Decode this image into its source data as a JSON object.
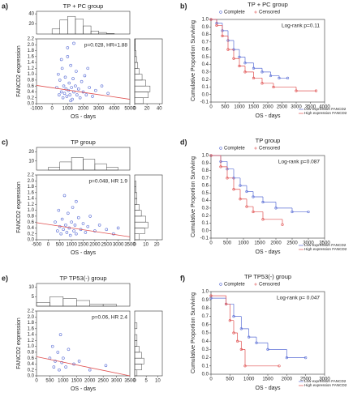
{
  "chart_data": [
    {
      "type": "scatter",
      "label": "a)",
      "title": "TP + PC group",
      "annotation": "p=0.028, HR=1.88",
      "xlabel": "OS - days",
      "ylabel": "FANCD2  expression",
      "color": "#5b6fd6",
      "trend_color": "#e05050",
      "x": [
        300,
        450,
        500,
        600,
        650,
        700,
        750,
        800,
        850,
        900,
        950,
        1000,
        1050,
        1100,
        1150,
        1200,
        1250,
        1300,
        1350,
        1400,
        1500,
        1550,
        1600,
        1700,
        1800,
        1900,
        2000,
        2100,
        2200,
        2400,
        2600,
        2800,
        3200,
        3600,
        1000,
        600,
        1400,
        400,
        2300,
        1200
      ],
      "values": [
        0.55,
        0.3,
        0.8,
        0.4,
        1.2,
        0.2,
        0.6,
        0.35,
        0.9,
        0.5,
        0.25,
        1.6,
        0.45,
        0.7,
        0.3,
        1.3,
        0.55,
        0.15,
        0.85,
        0.4,
        0.6,
        1.1,
        0.3,
        0.5,
        0.2,
        0.75,
        0.4,
        0.95,
        0.3,
        0.55,
        0.25,
        0.45,
        0.6,
        0.35,
        1.9,
        1.5,
        2.05,
        1.0,
        1.2,
        0.1
      ],
      "trend": {
        "x": [
          -1000,
          5000
        ],
        "values": [
          0.62,
          0.15
        ]
      },
      "xlim": [
        -1000,
        5000
      ],
      "xticks": [
        -1000,
        0,
        1000,
        2000,
        3000,
        4000,
        5000
      ],
      "ylim": [
        0,
        2.2
      ],
      "yticks": [
        {
          "value": 0,
          "label": "0.0"
        },
        0.2,
        0.4,
        0.6,
        0.8,
        {
          "value": 1,
          "label": "1.0"
        },
        1.2,
        1.4,
        1.6,
        1.8,
        {
          "value": 2,
          "label": "2.0"
        },
        2.2
      ],
      "top_hist": {
        "bins": [
          0,
          500,
          1000,
          1500,
          2000,
          2500,
          3000,
          3500,
          4000
        ],
        "counts": [
          10,
          28,
          35,
          30,
          16,
          6,
          3,
          1
        ],
        "ylim": [
          0,
          45
        ],
        "yticks": [
          20,
          40
        ]
      },
      "side_hist": {
        "bins": [
          0,
          0.2,
          0.4,
          0.6,
          0.8,
          1.0,
          1.2,
          1.4,
          1.6,
          1.8,
          2.0,
          2.2
        ],
        "counts": [
          14,
          22,
          25,
          18,
          12,
          7,
          5,
          3,
          2,
          1,
          1
        ],
        "xlim": [
          0,
          45
        ],
        "xticks": [
          0,
          20,
          40
        ]
      }
    },
    {
      "type": "survival",
      "label": "b)",
      "title": "TP + PC group",
      "annotation": "Log-rank p=0.11",
      "legend_marks": [
        "Complete",
        "Censored"
      ],
      "xlabel": "OS - days",
      "ylabel": "Cumulative Proportion Surviving",
      "series": [
        {
          "name": "Low expression FANCD2",
          "color": "#5b6fd6",
          "x": [
            0,
            200,
            400,
            600,
            800,
            1000,
            1200,
            1500,
            1800,
            2100,
            2400,
            2700
          ],
          "values": [
            1.0,
            0.95,
            0.85,
            0.72,
            0.6,
            0.5,
            0.42,
            0.35,
            0.3,
            0.25,
            0.22,
            0.22
          ]
        },
        {
          "name": "High expression FANCD2",
          "color": "#e05050",
          "x": [
            0,
            200,
            400,
            600,
            800,
            1000,
            1200,
            1500,
            1800,
            2200,
            3000,
            3700
          ],
          "values": [
            1.0,
            0.92,
            0.78,
            0.6,
            0.48,
            0.38,
            0.3,
            0.22,
            0.15,
            0.1,
            0.05,
            0.05
          ]
        }
      ],
      "xlim": [
        0,
        4000
      ],
      "xticks": [
        0,
        500,
        1000,
        1500,
        2000,
        2500,
        3000,
        3500,
        4000
      ],
      "ylim": [
        -0.1,
        1
      ],
      "yticks": [
        -0.1,
        {
          "value": 0,
          "label": "0.0"
        },
        0.1,
        0.2,
        0.3,
        0.4,
        0.5,
        0.6,
        0.7,
        0.8,
        0.9,
        {
          "value": 1,
          "label": "1.0"
        }
      ]
    },
    {
      "type": "scatter",
      "label": "c)",
      "title": "TP group",
      "annotation": "p=0.048, HR 1.9",
      "xlabel": "OS - days",
      "ylabel": "FANCD2  expression",
      "color": "#5b6fd6",
      "trend_color": "#e05050",
      "x": [
        300,
        400,
        450,
        500,
        550,
        600,
        650,
        700,
        750,
        800,
        850,
        900,
        950,
        1000,
        1050,
        1100,
        1150,
        1200,
        1300,
        1400,
        1500,
        1600,
        1700,
        1800,
        2000,
        2200,
        2500,
        2800,
        3000,
        1200
      ],
      "values": [
        0.6,
        0.3,
        1.0,
        0.45,
        0.2,
        0.7,
        0.35,
        1.5,
        0.5,
        0.25,
        0.9,
        0.4,
        0.15,
        0.6,
        1.1,
        0.3,
        0.5,
        0.2,
        0.75,
        0.35,
        0.55,
        0.25,
        0.45,
        0.8,
        0.3,
        0.5,
        0.35,
        0.2,
        0.4,
        1.3
      ],
      "trend": {
        "x": [
          -500,
          3500
        ],
        "values": [
          0.58,
          0.1
        ]
      },
      "xlim": [
        -500,
        3500
      ],
      "xticks": [
        -500,
        0,
        500,
        1000,
        1500,
        2000,
        2500,
        3000,
        3500
      ],
      "ylim": [
        0,
        2.2
      ],
      "yticks": [
        {
          "value": 0,
          "label": "0.0"
        },
        0.2,
        0.4,
        0.6,
        0.8,
        {
          "value": 1,
          "label": "1.0"
        },
        1.2,
        1.4,
        1.6,
        1.8,
        {
          "value": 2,
          "label": "2.0"
        },
        2.2
      ],
      "top_hist": {
        "bins": [
          0,
          500,
          1000,
          1500,
          2000,
          2500,
          3000
        ],
        "counts": [
          3,
          9,
          14,
          12,
          7,
          3
        ],
        "ylim": [
          0,
          25
        ],
        "yticks": [
          10,
          20
        ]
      },
      "side_hist": {
        "bins": [
          0,
          0.2,
          0.4,
          0.6,
          0.8,
          1.0,
          1.2,
          1.4,
          1.6,
          1.8,
          2.0,
          2.2
        ],
        "counts": [
          4,
          9,
          12,
          10,
          6,
          4,
          2,
          2,
          1,
          1,
          0
        ],
        "xlim": [
          0,
          25
        ],
        "xticks": [
          0,
          10,
          20
        ]
      }
    },
    {
      "type": "survival",
      "label": "d)",
      "title": "TP group",
      "annotation": "Log-rank p=0.087",
      "legend_marks": [
        "Complete",
        "Censored"
      ],
      "xlabel": "OS - days",
      "ylabel": "Cumulative Proportion Surviving",
      "series": [
        {
          "name": "Low expression FANCD2",
          "color": "#5b6fd6",
          "x": [
            0,
            300,
            500,
            700,
            900,
            1100,
            1300,
            1600,
            2000,
            2500,
            3000
          ],
          "values": [
            1.0,
            0.92,
            0.82,
            0.7,
            0.6,
            0.52,
            0.45,
            0.38,
            0.3,
            0.25,
            0.25
          ]
        },
        {
          "name": "High expression FANCD2",
          "color": "#e05050",
          "x": [
            0,
            300,
            500,
            700,
            900,
            1100,
            1300,
            1600,
            2200
          ],
          "values": [
            1.0,
            0.85,
            0.7,
            0.55,
            0.42,
            0.32,
            0.25,
            0.15,
            0.08
          ]
        }
      ],
      "xlim": [
        0,
        3500
      ],
      "xticks": [
        0,
        500,
        1000,
        1500,
        2000,
        2500,
        3000,
        3500
      ],
      "ylim": [
        -0.1,
        1
      ],
      "yticks": [
        -0.1,
        {
          "value": 0,
          "label": "0.0"
        },
        0.1,
        0.2,
        0.3,
        0.4,
        0.5,
        0.6,
        0.7,
        0.8,
        0.9,
        {
          "value": 1,
          "label": "1.0"
        }
      ]
    },
    {
      "type": "scatter",
      "label": "e)",
      "title": "TP TP53(-) group",
      "annotation": "p=0.06, HR 2.4",
      "xlabel": "OS - days",
      "ylabel": "FANCD2  expression",
      "color": "#5b6fd6",
      "trend_color": "#e05050",
      "x": [
        500,
        600,
        650,
        700,
        800,
        850,
        900,
        950,
        1000,
        1100,
        1200,
        1400,
        1600,
        2000,
        2600
      ],
      "values": [
        0.6,
        1.0,
        0.3,
        0.5,
        0.8,
        0.2,
        1.4,
        0.45,
        0.6,
        0.3,
        0.9,
        0.4,
        0.5,
        0.2,
        0.35
      ],
      "trend": {
        "x": [
          0,
          3500
        ],
        "values": [
          0.65,
          0.0
        ]
      },
      "xlim": [
        0,
        3500
      ],
      "xticks": [
        0,
        500,
        1000,
        1500,
        2000,
        2500,
        3000,
        3500
      ],
      "ylim": [
        0,
        2.2
      ],
      "yticks": [
        {
          "value": 0,
          "label": "0.0"
        },
        0.2,
        0.4,
        0.6,
        0.8,
        {
          "value": 1,
          "label": "1.0"
        },
        1.2,
        1.4,
        1.6,
        1.8,
        {
          "value": 2,
          "label": "2.0"
        },
        2.2
      ],
      "top_hist": {
        "bins": [
          0,
          500,
          1000,
          1500,
          2000,
          2500,
          3000
        ],
        "counts": [
          2,
          5,
          4,
          3,
          1,
          1
        ],
        "ylim": [
          0,
          12
        ],
        "yticks": [
          5,
          10
        ]
      },
      "side_hist": {
        "bins": [
          0,
          0.2,
          0.4,
          0.6,
          0.8,
          1.0,
          1.2,
          1.4,
          1.6,
          1.8,
          2.0,
          2.2
        ],
        "counts": [
          1,
          3,
          4,
          3,
          2,
          1,
          1,
          0,
          1,
          0,
          0
        ],
        "xlim": [
          0,
          12
        ],
        "xticks": [
          0,
          5,
          10
        ]
      }
    },
    {
      "type": "survival",
      "label": "f)",
      "title": "TP TP53(-) group",
      "annotation": "Log-rank p= 0.047",
      "legend_marks": [
        "Complete",
        "Censored"
      ],
      "xlabel": "OS - days",
      "ylabel": "Cumulative Proportion Surviving",
      "series": [
        {
          "name": "Low expression FANCD2",
          "color": "#5b6fd6",
          "x": [
            0,
            400,
            600,
            800,
            1000,
            1200,
            1500,
            2000,
            2500
          ],
          "values": [
            0.92,
            0.85,
            0.7,
            0.55,
            0.45,
            0.38,
            0.3,
            0.2,
            0.2
          ]
        },
        {
          "name": "High expression FANCD2",
          "color": "#e05050",
          "x": [
            0,
            400,
            500,
            600,
            700,
            800,
            900,
            1800
          ],
          "values": [
            0.95,
            0.85,
            0.65,
            0.5,
            0.4,
            0.3,
            0.1,
            0.1
          ]
        }
      ],
      "xlim": [
        0,
        3000
      ],
      "xticks": [
        0,
        500,
        1000,
        1500,
        2000,
        2500,
        3000
      ],
      "ylim": [
        0,
        1
      ],
      "yticks": [
        {
          "value": 0,
          "label": "0.0"
        },
        0.1,
        0.2,
        0.3,
        0.4,
        0.5,
        0.6,
        0.7,
        0.8,
        0.9,
        {
          "value": 1,
          "label": "1.0"
        }
      ]
    }
  ]
}
